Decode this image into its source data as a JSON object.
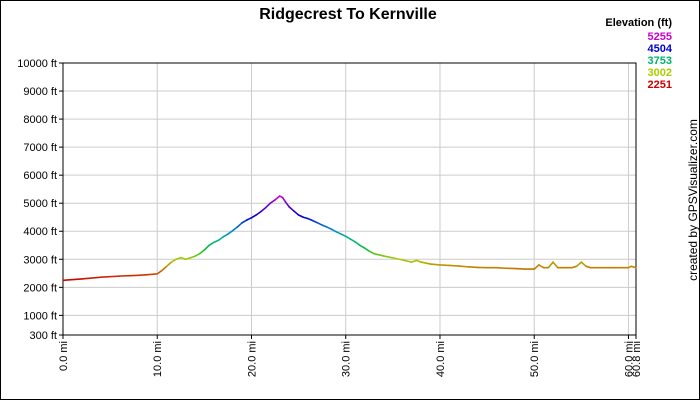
{
  "chart_data": {
    "type": "line",
    "title": "Ridgecrest To Kernville",
    "credit": "created by GPSVisualizer.com",
    "y_ticks": [
      {
        "value": 10000,
        "label": "10000 ft"
      },
      {
        "value": 9000,
        "label": "9000 ft"
      },
      {
        "value": 8000,
        "label": "8000 ft"
      },
      {
        "value": 7000,
        "label": "7000 ft"
      },
      {
        "value": 6000,
        "label": "6000 ft"
      },
      {
        "value": 5000,
        "label": "5000 ft"
      },
      {
        "value": 4000,
        "label": "4000 ft"
      },
      {
        "value": 3000,
        "label": "3000 ft"
      },
      {
        "value": 2000,
        "label": "2000 ft"
      },
      {
        "value": 1000,
        "label": "1000 ft"
      },
      {
        "value": 300,
        "label": "300 ft"
      }
    ],
    "x_ticks": [
      {
        "value": 0,
        "label": "0.0 mi"
      },
      {
        "value": 10,
        "label": "10.0 mi"
      },
      {
        "value": 20,
        "label": "20.0 mi"
      },
      {
        "value": 30,
        "label": "30.0 mi"
      },
      {
        "value": 40,
        "label": "40.0 mi"
      },
      {
        "value": 50,
        "label": "50.0 mi"
      },
      {
        "value": 60,
        "label": "60.0 mi"
      },
      {
        "value": 60.8,
        "label": "60.8 mi"
      }
    ],
    "xlim": [
      0,
      60.8
    ],
    "ylim": [
      300,
      10000
    ],
    "grid": true,
    "legend": {
      "title": "Elevation (ft)",
      "position": "top-right",
      "entries": [
        {
          "label": "5255",
          "color": "#cc00cc"
        },
        {
          "label": "4504",
          "color": "#0000cc"
        },
        {
          "label": "3753",
          "color": "#00b36b"
        },
        {
          "label": "3002",
          "color": "#aacc00"
        },
        {
          "label": "2251",
          "color": "#cc0000"
        }
      ]
    },
    "series": [
      {
        "x": [
          0,
          2,
          4,
          6,
          8,
          9,
          10,
          10.5,
          11,
          11.5,
          12,
          12.5,
          13,
          13.5,
          14,
          14.5,
          15,
          15.5,
          16,
          16.5,
          17,
          17.5,
          18,
          18.5,
          19,
          19.5,
          20,
          20.5,
          21,
          21.5,
          22,
          22.5,
          23,
          23.3,
          23.6,
          24,
          24.5,
          25,
          25.5,
          26,
          26.5,
          27,
          27.5,
          28,
          28.5,
          29,
          29.5,
          30,
          30.5,
          31,
          31.5,
          32,
          32.5,
          33,
          34,
          35,
          36,
          37,
          37.5,
          38,
          39,
          40,
          41,
          42,
          43,
          44,
          45,
          46,
          47,
          48,
          49,
          50,
          50.5,
          51,
          51.5,
          52,
          52.5,
          53,
          54,
          54.5,
          55,
          55.5,
          56,
          57,
          58,
          59,
          60,
          60.3,
          60.8
        ],
        "y": [
          2251,
          2300,
          2360,
          2400,
          2430,
          2450,
          2480,
          2600,
          2750,
          2900,
          3000,
          3060,
          3000,
          3050,
          3110,
          3200,
          3330,
          3500,
          3600,
          3680,
          3800,
          3900,
          4020,
          4150,
          4300,
          4400,
          4480,
          4580,
          4700,
          4840,
          5000,
          5120,
          5255,
          5200,
          5050,
          4870,
          4720,
          4580,
          4500,
          4450,
          4380,
          4300,
          4220,
          4150,
          4070,
          3980,
          3900,
          3820,
          3720,
          3620,
          3500,
          3400,
          3290,
          3200,
          3120,
          3050,
          2980,
          2900,
          2960,
          2900,
          2830,
          2800,
          2780,
          2760,
          2730,
          2710,
          2700,
          2700,
          2680,
          2670,
          2650,
          2650,
          2800,
          2700,
          2700,
          2900,
          2700,
          2700,
          2700,
          2750,
          2900,
          2750,
          2700,
          2700,
          2700,
          2700,
          2700,
          2750,
          2700
        ]
      }
    ]
  }
}
